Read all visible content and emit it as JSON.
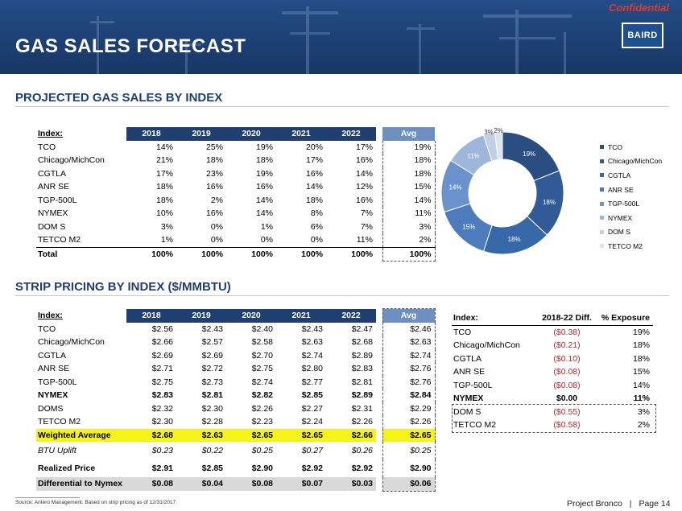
{
  "header": {
    "title": "GAS SALES FORECAST",
    "confidential": "Confidential",
    "logo": "BAIRD"
  },
  "section1": {
    "title": "PROJECTED GAS SALES BY INDEX",
    "index_label": "Index:",
    "years": [
      "2018",
      "2019",
      "2020",
      "2021",
      "2022"
    ],
    "avg_label": "Avg",
    "rows": [
      {
        "name": "TCO",
        "values": [
          "14%",
          "25%",
          "19%",
          "20%",
          "17%"
        ],
        "avg": "19%"
      },
      {
        "name": "Chicago/MichCon",
        "values": [
          "21%",
          "18%",
          "18%",
          "17%",
          "16%"
        ],
        "avg": "18%"
      },
      {
        "name": "CGTLA",
        "values": [
          "17%",
          "23%",
          "19%",
          "16%",
          "14%"
        ],
        "avg": "18%"
      },
      {
        "name": "ANR SE",
        "values": [
          "18%",
          "16%",
          "16%",
          "14%",
          "12%"
        ],
        "avg": "15%"
      },
      {
        "name": "TGP-500L",
        "values": [
          "18%",
          "2%",
          "14%",
          "18%",
          "16%"
        ],
        "avg": "14%"
      },
      {
        "name": "NYMEX",
        "values": [
          "10%",
          "16%",
          "14%",
          "8%",
          "7%"
        ],
        "avg": "11%"
      },
      {
        "name": "DOM S",
        "values": [
          "3%",
          "0%",
          "1%",
          "6%",
          "7%"
        ],
        "avg": "3%"
      },
      {
        "name": "TETCO M2",
        "values": [
          "1%",
          "0%",
          "0%",
          "0%",
          "11%"
        ],
        "avg": "2%"
      }
    ],
    "total": {
      "name": "Total",
      "values": [
        "100%",
        "100%",
        "100%",
        "100%",
        "100%"
      ],
      "avg": "100%"
    }
  },
  "chart_data": {
    "type": "pie",
    "categories": [
      "TCO",
      "Chicago/MichCon",
      "CGTLA",
      "ANR SE",
      "TGP-500L",
      "NYMEX",
      "DOM S",
      "TETCO M2"
    ],
    "values": [
      19,
      18,
      18,
      15,
      14,
      11,
      3,
      2
    ],
    "data_labels": [
      "19%",
      "18%",
      "18%",
      "15%",
      "14%",
      "11%",
      "3%",
      "2%"
    ],
    "colors": [
      "#2a4e82",
      "#305b96",
      "#3768a8",
      "#4d7cbd",
      "#6a93cd",
      "#9fb6dc",
      "#c2cfe6",
      "#dde4f1"
    ],
    "legend_position": "right",
    "donut": true
  },
  "section2": {
    "title": "STRIP PRICING BY INDEX ($/MMBTU)",
    "index_label": "Index:",
    "years": [
      "2018",
      "2019",
      "2020",
      "2021",
      "2022"
    ],
    "avg_label": "Avg",
    "rows": [
      {
        "name": "TCO",
        "values": [
          "$2.56",
          "$2.43",
          "$2.40",
          "$2.43",
          "$2.47"
        ],
        "avg": "$2.46",
        "bold": false
      },
      {
        "name": "Chicago/MichCon",
        "values": [
          "$2.66",
          "$2.57",
          "$2.58",
          "$2.63",
          "$2.68"
        ],
        "avg": "$2.63",
        "bold": false
      },
      {
        "name": "CGTLA",
        "values": [
          "$2.69",
          "$2.69",
          "$2.70",
          "$2.74",
          "$2.89"
        ],
        "avg": "$2.74",
        "bold": false
      },
      {
        "name": "ANR SE",
        "values": [
          "$2.71",
          "$2.72",
          "$2.75",
          "$2.80",
          "$2.83"
        ],
        "avg": "$2.76",
        "bold": false
      },
      {
        "name": "TGP-500L",
        "values": [
          "$2.75",
          "$2.73",
          "$2.74",
          "$2.77",
          "$2.81"
        ],
        "avg": "$2.76",
        "bold": false
      },
      {
        "name": "NYMEX",
        "values": [
          "$2.83",
          "$2.81",
          "$2.82",
          "$2.85",
          "$2.89"
        ],
        "avg": "$2.84",
        "bold": true
      },
      {
        "name": "DOMS",
        "values": [
          "$2.32",
          "$2.30",
          "$2.26",
          "$2.27",
          "$2.31"
        ],
        "avg": "$2.29",
        "bold": false
      },
      {
        "name": "TETCO M2",
        "values": [
          "$2.30",
          "$2.28",
          "$2.23",
          "$2.24",
          "$2.26"
        ],
        "avg": "$2.26",
        "bold": false
      }
    ],
    "weighted": {
      "name": "Weighted Average",
      "values": [
        "$2.68",
        "$2.63",
        "$2.65",
        "$2.65",
        "$2.66"
      ],
      "avg": "$2.65"
    },
    "btu": {
      "name": "BTU Uplift",
      "values": [
        "$0.23",
        "$0.22",
        "$0.25",
        "$0.27",
        "$0.26"
      ],
      "avg": "$0.25"
    },
    "realized": {
      "name": "Realized Price",
      "values": [
        "$2.91",
        "$2.85",
        "$2.90",
        "$2.92",
        "$2.92"
      ],
      "avg": "$2.90"
    },
    "differential": {
      "name": "Differential to Nymex",
      "values": [
        "$0.08",
        "$0.04",
        "$0.08",
        "$0.07",
        "$0.03"
      ],
      "avg": "$0.06"
    }
  },
  "diff_table": {
    "headers": [
      "Index:",
      "2018-22 Diff.",
      "% Exposure"
    ],
    "rows": [
      {
        "name": "TCO",
        "diff": "($0.38)",
        "exposure": "19%",
        "bold": false
      },
      {
        "name": "Chicago/MichCon",
        "diff": "($0.21)",
        "exposure": "18%",
        "bold": false
      },
      {
        "name": "CGTLA",
        "diff": "($0.10)",
        "exposure": "18%",
        "bold": false
      },
      {
        "name": "ANR SE",
        "diff": "($0.08)",
        "exposure": "15%",
        "bold": false
      },
      {
        "name": "TGP-500L",
        "diff": "($0.08)",
        "exposure": "14%",
        "bold": false
      },
      {
        "name": "NYMEX",
        "diff": "$0.00",
        "exposure": "11%",
        "bold": true
      },
      {
        "name": "DOM S",
        "diff": "($0.55)",
        "exposure": "3%",
        "bold": false
      },
      {
        "name": "TETCO M2",
        "diff": "($0.58)",
        "exposure": "2%",
        "bold": false
      }
    ]
  },
  "footer": {
    "source": "Source:   Antero Management. Based on strip pricing as of 12/31/2017.",
    "project": "Project Bronco",
    "separator": "|",
    "page": "Page 14"
  }
}
